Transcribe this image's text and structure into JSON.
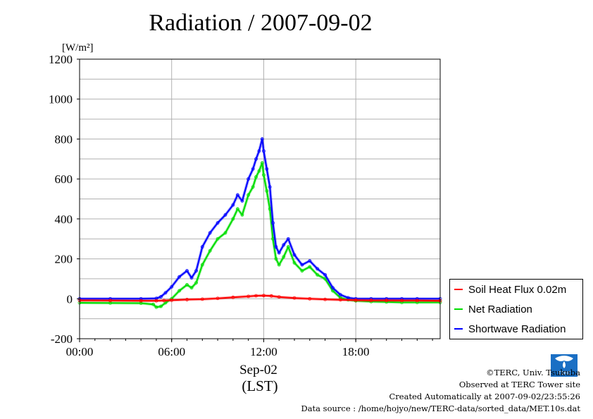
{
  "chart_data": {
    "type": "line",
    "title": "Radiation / 2007-09-02",
    "ylabel": "[W/m²]",
    "xlabel_date": "Sep-02",
    "xlabel_unit": "(LST)",
    "ylim": [
      -200,
      1200
    ],
    "xlim": [
      0,
      23.5
    ],
    "y_ticks": [
      -200,
      0,
      200,
      400,
      600,
      800,
      1000,
      1200
    ],
    "x_ticks": [
      {
        "value": 0,
        "label": "00:00"
      },
      {
        "value": 6,
        "label": "06:00"
      },
      {
        "value": 12,
        "label": "12:00"
      },
      {
        "value": 18,
        "label": "18:00"
      }
    ],
    "grid": true,
    "legend_position": "right",
    "series": [
      {
        "name": "Soil Heat Flux 0.02m",
        "color": "#ff0000",
        "x": [
          0,
          2,
          4,
          5,
          5.5,
          6,
          7,
          8,
          9,
          10,
          11,
          11.5,
          12,
          12.5,
          13,
          14,
          15,
          16,
          17,
          18,
          19,
          20,
          21,
          22,
          23.5
        ],
        "values": [
          -8,
          -9,
          -10,
          -10,
          -9,
          -7,
          -4,
          -2,
          2,
          7,
          12,
          15,
          16,
          14,
          9,
          4,
          0,
          -3,
          -5,
          -7,
          -8,
          -8,
          -9,
          -9,
          -10
        ]
      },
      {
        "name": "Net Radiation",
        "color": "#00dd00",
        "x": [
          0,
          2,
          4,
          4.8,
          5,
          5.3,
          5.6,
          6,
          6.5,
          7,
          7.3,
          7.6,
          8,
          8.5,
          9,
          9.5,
          10,
          10.3,
          10.6,
          11,
          11.3,
          11.5,
          11.7,
          11.9,
          12,
          12.2,
          12.4,
          12.6,
          12.8,
          13,
          13.3,
          13.6,
          14,
          14.5,
          15,
          15.5,
          16,
          16.5,
          17,
          17.5,
          18,
          19,
          20,
          21,
          22,
          23.5
        ],
        "values": [
          -20,
          -21,
          -22,
          -28,
          -42,
          -38,
          -20,
          0,
          40,
          70,
          55,
          80,
          170,
          240,
          300,
          330,
          400,
          450,
          420,
          520,
          560,
          610,
          640,
          680,
          620,
          540,
          450,
          300,
          200,
          170,
          210,
          260,
          180,
          140,
          160,
          120,
          100,
          40,
          5,
          -5,
          -10,
          -14,
          -16,
          -18,
          -18,
          -18
        ]
      },
      {
        "name": "Shortwave Radiation",
        "color": "#0000ff",
        "x": [
          0,
          2,
          4,
          5,
          5.3,
          5.6,
          6,
          6.5,
          7,
          7.3,
          7.6,
          8,
          8.5,
          9,
          9.5,
          10,
          10.3,
          10.6,
          11,
          11.3,
          11.5,
          11.7,
          11.9,
          12,
          12.2,
          12.4,
          12.6,
          12.8,
          13,
          13.3,
          13.6,
          14,
          14.5,
          15,
          15.5,
          16,
          16.5,
          17,
          17.5,
          18,
          19,
          20,
          21,
          22,
          23.5
        ],
        "values": [
          0,
          0,
          0,
          2,
          10,
          30,
          60,
          110,
          140,
          105,
          140,
          260,
          330,
          380,
          420,
          470,
          520,
          490,
          600,
          650,
          700,
          740,
          800,
          740,
          650,
          560,
          380,
          260,
          230,
          270,
          300,
          220,
          170,
          190,
          150,
          120,
          55,
          20,
          5,
          0,
          0,
          0,
          0,
          0,
          0
        ]
      }
    ]
  },
  "footer": {
    "copyright": "©TERC, Univ. Tsukuba",
    "observed": "Observed at TERC Tower site",
    "created": "Created Automatically at 2007-09-02/23:55:26",
    "source": "Data source : /home/hojyo/new/TERC-data/sorted_data/MET.10s.dat"
  },
  "logo": {
    "text": "TERC"
  }
}
